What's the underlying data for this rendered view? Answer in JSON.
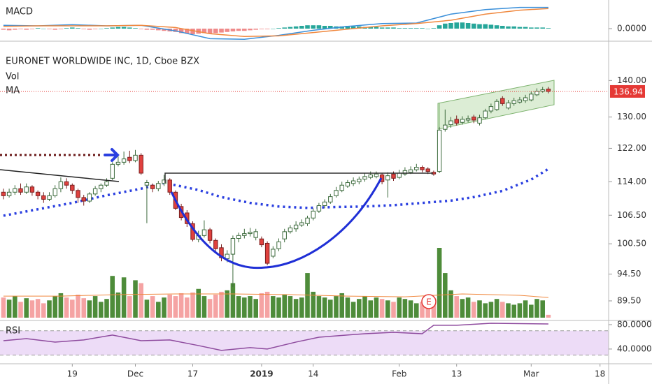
{
  "chart_data": [
    {
      "type": "candlestick",
      "title": "EURONET WORLDWIDE INC, 1D, Cboe BZX",
      "log_scale": true,
      "grid": false,
      "xlim": [
        -0.6,
        105.5
      ],
      "xticks": [
        {
          "value": 12,
          "label": "19"
        },
        {
          "value": 23,
          "label": "Dec"
        },
        {
          "value": 33,
          "label": "17"
        },
        {
          "value": 45,
          "label": "2019"
        },
        {
          "value": 54,
          "label": "14"
        },
        {
          "value": 69,
          "label": "Feb"
        },
        {
          "value": 79,
          "label": "13"
        },
        {
          "value": 92,
          "label": "Mar"
        },
        {
          "value": 104,
          "label": "18"
        }
      ],
      "ylim": [
        86.5,
        151
      ],
      "yticks": [
        {
          "value": 140,
          "label": "140.00"
        },
        {
          "value": 130,
          "label": "130.00"
        },
        {
          "value": 122,
          "label": "122.00"
        },
        {
          "value": 114,
          "label": "114.00"
        },
        {
          "value": 106.5,
          "label": "106.50"
        },
        {
          "value": 100.5,
          "label": "100.50"
        },
        {
          "value": 94.5,
          "label": "94.50"
        },
        {
          "value": 89.5,
          "label": "89.50"
        }
      ],
      "up_color": "#ffffff",
      "up_border": "#3d6b3d",
      "down_color": "#e0413e",
      "down_border": "#7a2020",
      "last_price_color": "#e53935",
      "open": [
        111.6,
        110.8,
        111.6,
        112.4,
        111.6,
        112.8,
        111.6,
        110.8,
        110.0,
        110.8,
        112.4,
        114.0,
        113.2,
        112.0,
        110.4,
        109.6,
        111.2,
        112.4,
        113.2,
        114.8,
        118.1,
        118.6,
        119.8,
        119.0,
        120.3,
        113.2,
        113.2,
        112.4,
        113.6,
        114.4,
        111.6,
        108.4,
        107.0,
        104.7,
        101.4,
        102.2,
        103.4,
        101.2,
        99.7,
        97.5,
        98.4,
        101.6,
        102.2,
        102.6,
        101.8,
        101.5,
        100.6,
        98.0,
        99.5,
        101.5,
        103.0,
        103.6,
        104.4,
        104.7,
        105.9,
        107.4,
        108.6,
        109.4,
        110.8,
        112.0,
        113.0,
        113.6,
        114.0,
        114.6,
        115.0,
        115.2,
        115.6,
        114.4,
        115.8,
        115.0,
        115.8,
        116.2,
        116.8,
        117.4,
        117.0,
        116.2,
        116.4,
        126.8,
        128.0,
        129.4,
        128.6,
        129.2,
        130.0,
        128.4,
        129.8,
        131.6,
        132.0,
        135.0,
        132.4,
        133.6,
        134.0,
        134.4,
        134.6,
        136.0,
        137.0,
        137.6
      ],
      "high": [
        112.4,
        112.4,
        113.2,
        113.6,
        113.6,
        113.2,
        112.0,
        111.6,
        111.6,
        113.2,
        115.0,
        114.8,
        113.6,
        112.4,
        111.0,
        111.6,
        113.0,
        113.6,
        114.8,
        118.6,
        120.0,
        121.2,
        121.4,
        121.6,
        120.8,
        114.4,
        113.6,
        114.2,
        115.6,
        114.8,
        112.0,
        109.0,
        107.6,
        105.2,
        103.2,
        105.4,
        103.8,
        101.6,
        100.4,
        99.2,
        102.2,
        102.8,
        103.6,
        103.8,
        103.6,
        102.0,
        101.0,
        100.0,
        101.6,
        103.6,
        104.4,
        105.2,
        105.6,
        106.4,
        108.0,
        109.2,
        110.0,
        111.2,
        112.8,
        114.0,
        114.4,
        115.0,
        115.2,
        116.0,
        116.4,
        116.4,
        116.0,
        116.2,
        116.4,
        116.8,
        117.4,
        117.6,
        118.2,
        117.8,
        117.4,
        116.6,
        127.4,
        132.0,
        130.0,
        130.4,
        130.2,
        130.4,
        130.6,
        130.6,
        132.2,
        133.6,
        134.8,
        135.6,
        134.6,
        135.2,
        135.4,
        136.0,
        137.0,
        137.8,
        138.2,
        138.2
      ],
      "low": [
        110.0,
        110.4,
        111.0,
        111.0,
        111.2,
        110.8,
        110.0,
        109.2,
        109.6,
        110.4,
        111.6,
        112.4,
        111.2,
        109.2,
        108.6,
        109.2,
        110.8,
        111.6,
        112.8,
        114.4,
        117.6,
        118.0,
        118.4,
        118.6,
        115.6,
        104.8,
        111.6,
        111.8,
        113.0,
        111.0,
        107.6,
        105.4,
        104.0,
        101.0,
        100.8,
        101.8,
        100.6,
        99.0,
        97.0,
        96.8,
        92.1,
        100.8,
        101.6,
        102.0,
        101.2,
        99.8,
        96.2,
        97.6,
        99.0,
        100.8,
        102.6,
        103.0,
        104.0,
        104.2,
        105.4,
        107.0,
        108.0,
        109.0,
        110.4,
        111.6,
        112.6,
        113.0,
        113.4,
        114.0,
        114.6,
        114.8,
        113.4,
        110.4,
        114.2,
        114.6,
        115.4,
        115.8,
        116.4,
        116.2,
        115.8,
        115.4,
        116.0,
        126.2,
        127.2,
        127.8,
        128.0,
        128.6,
        128.4,
        127.8,
        129.4,
        131.0,
        131.6,
        133.0,
        132.0,
        133.0,
        133.6,
        133.8,
        134.2,
        135.6,
        136.6,
        136.4
      ],
      "close": [
        110.8,
        111.6,
        112.4,
        111.6,
        112.8,
        111.6,
        110.8,
        110.0,
        110.8,
        112.4,
        114.0,
        113.2,
        112.0,
        110.4,
        109.6,
        111.2,
        112.4,
        113.2,
        114.0,
        118.1,
        118.6,
        119.4,
        119.0,
        120.3,
        116.0,
        113.8,
        112.4,
        113.6,
        114.4,
        111.6,
        108.0,
        106.0,
        104.7,
        101.4,
        102.2,
        103.4,
        101.2,
        99.5,
        97.7,
        98.4,
        101.6,
        102.2,
        102.6,
        102.9,
        103.0,
        100.3,
        96.6,
        99.4,
        100.9,
        103.0,
        103.8,
        104.4,
        104.9,
        105.9,
        107.4,
        108.6,
        109.4,
        110.6,
        112.0,
        113.2,
        113.8,
        114.2,
        114.6,
        115.2,
        115.6,
        115.8,
        114.0,
        115.4,
        114.8,
        116.0,
        116.6,
        116.8,
        117.4,
        116.8,
        116.4,
        115.8,
        126.6,
        127.9,
        129.0,
        128.4,
        129.4,
        129.6,
        129.2,
        129.8,
        131.6,
        132.8,
        134.2,
        133.6,
        133.8,
        134.4,
        134.6,
        135.2,
        136.2,
        137.0,
        137.4,
        136.94
      ],
      "volume": {
        "name": "Vol",
        "up_color": "#4e8c3a",
        "down_color": "#f5a3a3",
        "values": [
          28,
          25,
          30,
          22,
          27,
          24,
          26,
          20,
          24,
          30,
          34,
          28,
          25,
          32,
          27,
          24,
          30,
          22,
          26,
          58,
          35,
          56,
          30,
          52,
          48,
          25,
          30,
          22,
          28,
          32,
          30,
          34,
          28,
          35,
          40,
          30,
          26,
          32,
          36,
          38,
          48,
          30,
          28,
          30,
          26,
          34,
          36,
          30,
          28,
          32,
          30,
          26,
          28,
          62,
          36,
          30,
          28,
          25,
          30,
          34,
          28,
          22,
          26,
          30,
          24,
          28,
          26,
          24,
          22,
          28,
          26,
          24,
          20,
          22,
          18,
          26,
          97,
          62,
          38,
          30,
          26,
          28,
          22,
          24,
          20,
          22,
          26,
          22,
          20,
          18,
          20,
          24,
          18,
          26,
          24,
          4
        ]
      },
      "volume_ma": {
        "color": "#f0883e",
        "x": [
          0,
          10,
          20,
          30,
          40,
          50,
          60,
          70,
          80,
          90,
          95
        ],
        "values": [
          30,
          30,
          32,
          33,
          33,
          32,
          30,
          29,
          33,
          31,
          28
        ]
      },
      "ma": {
        "name": "MA",
        "color": "#2a3fe0",
        "x": [
          0,
          6,
          12,
          18,
          24,
          28,
          30,
          34,
          38,
          43,
          48,
          53,
          58,
          63,
          68,
          73,
          78,
          82,
          87,
          92,
          95
        ],
        "values": [
          106.4,
          107.8,
          109.2,
          110.9,
          112.4,
          113.7,
          113.2,
          112.1,
          110.5,
          109.2,
          108.4,
          108.1,
          108.3,
          108.4,
          108.7,
          109.2,
          109.7,
          110.5,
          111.9,
          114.5,
          117.0
        ]
      },
      "earnings_marker": "E"
    },
    {
      "type": "macd",
      "title": "MACD",
      "ylim": [
        -2.125,
        5.125
      ],
      "yticks": [
        {
          "value": 0,
          "label": "0.0000"
        }
      ],
      "macd": {
        "color": "#3a8fd9",
        "x": [
          0,
          6,
          12,
          18,
          24,
          30,
          36,
          42,
          48,
          54,
          60,
          66,
          72,
          78,
          84,
          90,
          95
        ],
        "values": [
          0.6,
          0.5,
          0.7,
          0.5,
          0.6,
          -0.4,
          -1.8,
          -1.9,
          -1.2,
          -0.3,
          0.4,
          0.9,
          1.0,
          2.6,
          3.4,
          3.8,
          3.8
        ]
      },
      "signal": {
        "color": "#f0883e",
        "x": [
          0,
          6,
          12,
          18,
          24,
          30,
          36,
          42,
          48,
          54,
          60,
          66,
          72,
          78,
          84,
          90,
          95
        ],
        "values": [
          0.4,
          0.5,
          0.5,
          0.5,
          0.6,
          0.2,
          -0.9,
          -1.4,
          -1.3,
          -0.7,
          -0.1,
          0.5,
          0.9,
          1.5,
          2.6,
          3.3,
          3.6
        ]
      },
      "histogram": {
        "pos_color": "#26a69a",
        "neg_color": "#ef8a8a",
        "values": [
          -0.2,
          -0.3,
          -0.2,
          -0.1,
          -0.2,
          -0.1,
          0.1,
          0.0,
          -0.1,
          -0.2,
          -0.1,
          0.1,
          0.2,
          0.1,
          -0.1,
          -0.2,
          -0.1,
          0.0,
          0.1,
          0.2,
          0.3,
          0.3,
          0.2,
          0.1,
          -0.1,
          -0.2,
          -0.2,
          -0.3,
          -0.4,
          -0.5,
          -0.6,
          -0.8,
          -0.9,
          -1.0,
          -0.9,
          -0.8,
          -0.9,
          -0.8,
          -0.7,
          -0.6,
          -0.5,
          -0.4,
          -0.4,
          -0.3,
          -0.2,
          -0.1,
          -0.1,
          0.0,
          0.1,
          0.2,
          0.3,
          0.4,
          0.5,
          0.6,
          0.6,
          0.6,
          0.5,
          0.5,
          0.4,
          0.4,
          0.5,
          0.4,
          0.4,
          0.3,
          0.3,
          0.3,
          0.2,
          0.2,
          0.2,
          0.1,
          0.1,
          0.1,
          0.1,
          0.1,
          0.0,
          0.1,
          0.6,
          0.9,
          1.0,
          1.1,
          1.1,
          1.0,
          0.9,
          0.8,
          0.8,
          0.7,
          0.6,
          0.5,
          0.4,
          0.4,
          0.3,
          0.3,
          0.2,
          0.2,
          0.2,
          0.1
        ]
      }
    },
    {
      "type": "rsi",
      "title": "RSI",
      "ylim": [
        17,
        83.4
      ],
      "yticks": [
        {
          "value": 80,
          "label": "80.0000"
        },
        {
          "value": 40,
          "label": "40.0000"
        }
      ],
      "bands": [
        30,
        70
      ],
      "band_color": "#eddcf7",
      "color": "#8e4b9e",
      "x": [
        0,
        4,
        9,
        14,
        19,
        24,
        29,
        34,
        38,
        43,
        46,
        51,
        55,
        63,
        68,
        73,
        75,
        79,
        85,
        95
      ],
      "values": [
        53.7,
        57.1,
        51.4,
        54.9,
        62.9,
        53.7,
        54.9,
        45.7,
        37.7,
        42.3,
        40,
        51.4,
        59.4,
        65.1,
        67.4,
        65.1,
        78.9,
        78.9,
        82.3,
        81.1
      ]
    }
  ]
}
